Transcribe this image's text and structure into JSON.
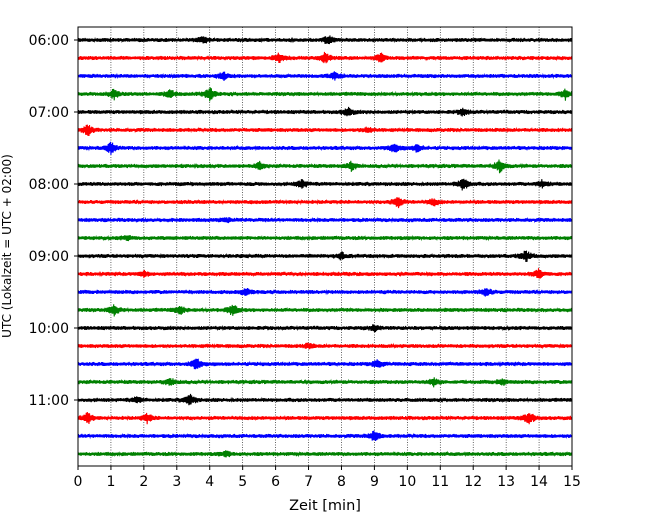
{
  "chart_data": {
    "type": "line",
    "xlabel": "Zeit  [min]",
    "ylabel": "UTC (Lokalzeit = UTC + 02:00)",
    "xlim": [
      0,
      15
    ],
    "x_ticks": [
      "0",
      "1",
      "2",
      "3",
      "4",
      "5",
      "6",
      "7",
      "8",
      "9",
      "10",
      "11",
      "12",
      "13",
      "14",
      "15"
    ],
    "y_ticks": [
      "06:00",
      "07:00",
      "08:00",
      "09:00",
      "10:00",
      "11:00"
    ],
    "grid": "vertical dotted",
    "trace_interval_min": 15,
    "colors": [
      "#000000",
      "#ff0000",
      "#0000ff",
      "#008000"
    ],
    "traces": [
      {
        "start": "06:00",
        "color": "#000000",
        "events": [
          [
            3.8,
            0.5
          ],
          [
            7.6,
            0.6
          ]
        ]
      },
      {
        "start": "06:15",
        "color": "#ff0000",
        "events": [
          [
            6.1,
            0.6
          ],
          [
            7.5,
            0.7
          ],
          [
            9.2,
            0.6
          ]
        ]
      },
      {
        "start": "06:30",
        "color": "#0000ff",
        "events": [
          [
            4.4,
            0.6
          ],
          [
            7.8,
            0.5
          ]
        ]
      },
      {
        "start": "06:45",
        "color": "#008000",
        "events": [
          [
            1.1,
            0.7
          ],
          [
            2.8,
            0.5
          ],
          [
            4.0,
            1.0
          ],
          [
            14.8,
            0.7
          ]
        ]
      },
      {
        "start": "07:00",
        "color": "#000000",
        "events": [
          [
            8.2,
            0.6
          ],
          [
            11.7,
            0.5
          ]
        ]
      },
      {
        "start": "07:15",
        "color": "#ff0000",
        "events": [
          [
            0.3,
            0.8
          ],
          [
            8.8,
            0.4
          ]
        ]
      },
      {
        "start": "07:30",
        "color": "#0000ff",
        "events": [
          [
            1.0,
            0.8
          ],
          [
            9.6,
            0.7
          ],
          [
            10.3,
            0.5
          ]
        ]
      },
      {
        "start": "07:45",
        "color": "#008000",
        "events": [
          [
            5.5,
            0.5
          ],
          [
            8.3,
            0.6
          ],
          [
            12.8,
            0.9
          ]
        ]
      },
      {
        "start": "08:00",
        "color": "#000000",
        "events": [
          [
            6.8,
            0.6
          ],
          [
            11.7,
            0.9
          ],
          [
            14.1,
            0.5
          ]
        ]
      },
      {
        "start": "08:15",
        "color": "#ff0000",
        "events": [
          [
            9.7,
            0.8
          ],
          [
            10.8,
            0.5
          ]
        ]
      },
      {
        "start": "08:30",
        "color": "#0000ff",
        "events": [
          [
            4.5,
            0.3
          ]
        ]
      },
      {
        "start": "08:45",
        "color": "#008000",
        "events": [
          [
            1.5,
            0.3
          ]
        ]
      },
      {
        "start": "09:00",
        "color": "#000000",
        "events": [
          [
            8.0,
            0.5
          ],
          [
            13.6,
            0.8
          ]
        ]
      },
      {
        "start": "09:15",
        "color": "#ff0000",
        "events": [
          [
            2.0,
            0.4
          ],
          [
            14.0,
            0.7
          ]
        ]
      },
      {
        "start": "09:30",
        "color": "#0000ff",
        "events": [
          [
            5.1,
            0.6
          ],
          [
            12.4,
            0.6
          ]
        ]
      },
      {
        "start": "09:45",
        "color": "#008000",
        "events": [
          [
            1.1,
            0.7
          ],
          [
            3.1,
            0.6
          ],
          [
            4.7,
            0.9
          ]
        ]
      },
      {
        "start": "10:00",
        "color": "#000000",
        "events": [
          [
            9.0,
            0.4
          ]
        ]
      },
      {
        "start": "10:15",
        "color": "#ff0000",
        "events": [
          [
            7.0,
            0.3
          ]
        ]
      },
      {
        "start": "10:30",
        "color": "#0000ff",
        "events": [
          [
            3.6,
            0.9
          ],
          [
            9.1,
            0.6
          ]
        ]
      },
      {
        "start": "10:45",
        "color": "#008000",
        "events": [
          [
            2.8,
            0.5
          ],
          [
            10.8,
            0.5
          ],
          [
            12.9,
            0.4
          ]
        ]
      },
      {
        "start": "11:00",
        "color": "#000000",
        "events": [
          [
            1.8,
            0.4
          ],
          [
            3.4,
            0.8
          ]
        ]
      },
      {
        "start": "11:15",
        "color": "#ff0000",
        "events": [
          [
            0.3,
            0.8
          ],
          [
            2.1,
            0.6
          ],
          [
            13.7,
            0.9
          ]
        ]
      },
      {
        "start": "11:30",
        "color": "#0000ff",
        "events": [
          [
            9.0,
            0.7
          ]
        ]
      },
      {
        "start": "11:45",
        "color": "#008000",
        "events": [
          [
            4.5,
            0.4
          ]
        ]
      }
    ]
  }
}
